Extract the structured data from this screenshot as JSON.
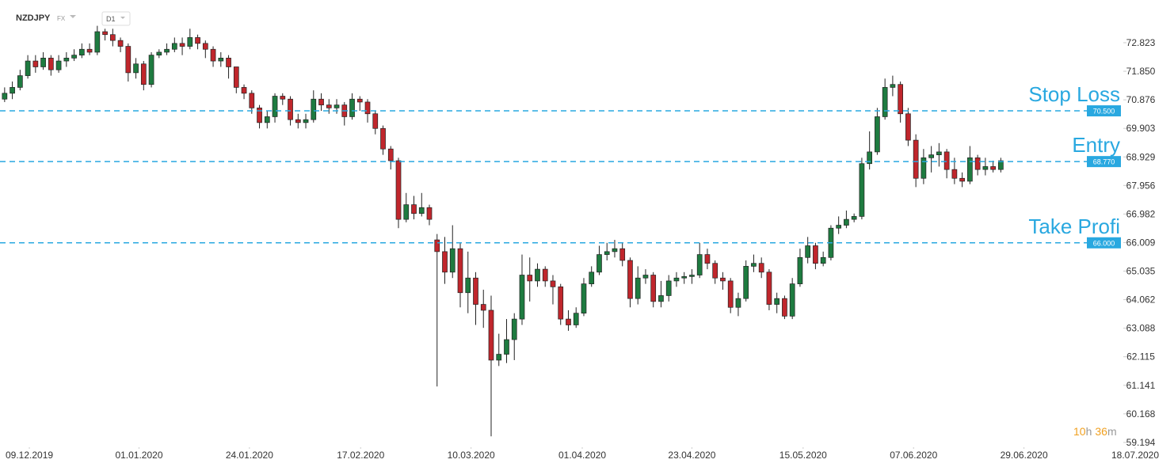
{
  "header": {
    "symbol": "NZDJPY",
    "market": "FX",
    "interval": "D1"
  },
  "countdown": {
    "hours": "10",
    "hours_unit": "h",
    "minutes": "36",
    "minutes_unit": "m"
  },
  "chart_data": {
    "type": "candlestick",
    "up_color": "#1e7b40",
    "down_color": "#c0262c",
    "candles": [
      [
        70.9,
        71.3,
        70.8,
        71.1
      ],
      [
        71.1,
        71.5,
        70.9,
        71.3
      ],
      [
        71.3,
        71.9,
        71.2,
        71.7
      ],
      [
        71.7,
        72.4,
        71.6,
        72.2
      ],
      [
        72.2,
        72.4,
        71.8,
        72.0
      ],
      [
        72.0,
        72.5,
        71.9,
        72.3
      ],
      [
        72.3,
        72.4,
        71.7,
        71.9
      ],
      [
        71.9,
        72.4,
        71.8,
        72.2
      ],
      [
        72.2,
        72.5,
        72.0,
        72.3
      ],
      [
        72.3,
        72.6,
        72.2,
        72.4
      ],
      [
        72.4,
        72.8,
        72.3,
        72.6
      ],
      [
        72.6,
        72.8,
        72.4,
        72.5
      ],
      [
        72.5,
        73.4,
        72.4,
        73.2
      ],
      [
        73.2,
        73.3,
        72.9,
        73.1
      ],
      [
        73.1,
        73.3,
        72.7,
        72.9
      ],
      [
        72.9,
        73.0,
        72.5,
        72.7
      ],
      [
        72.7,
        72.8,
        71.5,
        71.8
      ],
      [
        71.8,
        72.3,
        71.6,
        72.1
      ],
      [
        72.1,
        72.2,
        71.2,
        71.4
      ],
      [
        71.4,
        72.5,
        71.3,
        72.4
      ],
      [
        72.4,
        72.6,
        72.3,
        72.5
      ],
      [
        72.5,
        72.8,
        72.4,
        72.6
      ],
      [
        72.6,
        73.0,
        72.5,
        72.8
      ],
      [
        72.8,
        73.0,
        72.4,
        72.7
      ],
      [
        72.7,
        73.3,
        72.6,
        73.0
      ],
      [
        73.0,
        73.1,
        72.6,
        72.8
      ],
      [
        72.8,
        72.9,
        72.3,
        72.6
      ],
      [
        72.6,
        72.7,
        72.0,
        72.2
      ],
      [
        72.2,
        72.5,
        72.0,
        72.3
      ],
      [
        72.3,
        72.4,
        71.6,
        72.0
      ],
      [
        72.0,
        72.0,
        71.1,
        71.3
      ],
      [
        71.3,
        71.4,
        70.9,
        71.1
      ],
      [
        71.1,
        71.2,
        70.4,
        70.6
      ],
      [
        70.6,
        70.7,
        69.9,
        70.1
      ],
      [
        70.1,
        70.5,
        69.9,
        70.3
      ],
      [
        70.3,
        71.1,
        70.1,
        71.0
      ],
      [
        71.0,
        71.1,
        70.7,
        70.9
      ],
      [
        70.9,
        71.0,
        70.0,
        70.2
      ],
      [
        70.2,
        70.4,
        69.9,
        70.1
      ],
      [
        70.1,
        70.4,
        69.9,
        70.2
      ],
      [
        70.2,
        71.2,
        70.1,
        70.9
      ],
      [
        70.9,
        71.1,
        70.5,
        70.7
      ],
      [
        70.7,
        70.9,
        70.4,
        70.6
      ],
      [
        70.6,
        70.9,
        70.4,
        70.7
      ],
      [
        70.7,
        70.8,
        70.0,
        70.3
      ],
      [
        70.3,
        71.1,
        70.2,
        70.9
      ],
      [
        70.9,
        71.0,
        70.5,
        70.8
      ],
      [
        70.8,
        70.9,
        70.1,
        70.4
      ],
      [
        70.4,
        70.5,
        69.7,
        69.9
      ],
      [
        69.9,
        70.0,
        69.0,
        69.2
      ],
      [
        69.2,
        69.3,
        68.5,
        68.8
      ],
      [
        68.8,
        68.9,
        66.5,
        66.8
      ],
      [
        66.8,
        67.7,
        66.7,
        67.3
      ],
      [
        67.3,
        67.6,
        66.8,
        67.0
      ],
      [
        67.0,
        67.7,
        66.9,
        67.2
      ],
      [
        67.2,
        67.3,
        66.6,
        66.8
      ],
      [
        66.1,
        66.3,
        61.1,
        65.7
      ],
      [
        65.7,
        66.2,
        64.6,
        65.0
      ],
      [
        65.0,
        66.6,
        64.8,
        65.8
      ],
      [
        65.8,
        66.0,
        63.8,
        64.3
      ],
      [
        64.3,
        65.7,
        63.6,
        64.8
      ],
      [
        64.8,
        65.0,
        63.2,
        63.9
      ],
      [
        63.9,
        64.4,
        63.1,
        63.7
      ],
      [
        63.7,
        64.2,
        59.4,
        62.0
      ],
      [
        62.0,
        62.9,
        61.8,
        62.2
      ],
      [
        62.2,
        63.4,
        61.9,
        62.7
      ],
      [
        62.7,
        63.6,
        62.0,
        63.4
      ],
      [
        63.4,
        65.6,
        63.2,
        64.9
      ],
      [
        64.9,
        65.5,
        64.0,
        64.7
      ],
      [
        64.7,
        65.3,
        64.5,
        65.1
      ],
      [
        65.1,
        65.2,
        64.5,
        64.7
      ],
      [
        64.7,
        64.9,
        63.9,
        64.5
      ],
      [
        64.5,
        64.6,
        63.2,
        63.4
      ],
      [
        63.4,
        63.7,
        63.0,
        63.2
      ],
      [
        63.2,
        63.8,
        63.1,
        63.6
      ],
      [
        63.6,
        64.8,
        63.5,
        64.6
      ],
      [
        64.6,
        65.2,
        64.5,
        65.0
      ],
      [
        65.0,
        65.9,
        64.9,
        65.6
      ],
      [
        65.6,
        66.0,
        65.4,
        65.7
      ],
      [
        65.7,
        66.1,
        65.5,
        65.8
      ],
      [
        65.8,
        66.0,
        65.2,
        65.4
      ],
      [
        65.4,
        65.5,
        63.8,
        64.1
      ],
      [
        64.1,
        65.2,
        63.9,
        64.8
      ],
      [
        64.8,
        65.1,
        64.6,
        64.9
      ],
      [
        64.9,
        65.0,
        63.8,
        64.0
      ],
      [
        64.0,
        64.7,
        63.8,
        64.2
      ],
      [
        64.2,
        64.9,
        64.0,
        64.7
      ],
      [
        64.7,
        65.0,
        64.5,
        64.8
      ],
      [
        64.8,
        65.0,
        64.6,
        64.85
      ],
      [
        64.85,
        65.1,
        64.6,
        64.9
      ],
      [
        64.9,
        66.0,
        64.8,
        65.6
      ],
      [
        65.6,
        65.8,
        65.1,
        65.3
      ],
      [
        65.3,
        65.4,
        64.6,
        64.8
      ],
      [
        64.8,
        65.0,
        64.4,
        64.7
      ],
      [
        64.7,
        64.8,
        63.6,
        63.8
      ],
      [
        63.8,
        64.3,
        63.5,
        64.1
      ],
      [
        64.1,
        65.4,
        64.0,
        65.2
      ],
      [
        65.2,
        65.6,
        65.0,
        65.3
      ],
      [
        65.3,
        65.5,
        64.8,
        65.0
      ],
      [
        65.0,
        65.1,
        63.7,
        63.9
      ],
      [
        63.9,
        64.3,
        63.6,
        64.1
      ],
      [
        64.1,
        64.2,
        63.4,
        63.5
      ],
      [
        63.5,
        64.8,
        63.4,
        64.6
      ],
      [
        64.6,
        65.8,
        64.5,
        65.5
      ],
      [
        65.5,
        66.2,
        65.3,
        65.9
      ],
      [
        65.9,
        66.0,
        65.1,
        65.3
      ],
      [
        65.3,
        65.7,
        65.2,
        65.5
      ],
      [
        65.5,
        66.6,
        65.4,
        66.5
      ],
      [
        66.5,
        66.9,
        66.3,
        66.6
      ],
      [
        66.6,
        67.1,
        66.5,
        66.8
      ],
      [
        66.8,
        67.0,
        66.7,
        66.9
      ],
      [
        66.9,
        68.9,
        66.8,
        68.7
      ],
      [
        68.7,
        69.8,
        68.5,
        69.1
      ],
      [
        69.1,
        70.6,
        69.0,
        70.3
      ],
      [
        70.3,
        71.6,
        70.2,
        71.3
      ],
      [
        71.3,
        71.7,
        71.0,
        71.4
      ],
      [
        71.4,
        71.5,
        70.1,
        70.4
      ],
      [
        70.4,
        70.6,
        69.3,
        69.5
      ],
      [
        69.5,
        69.7,
        67.9,
        68.2
      ],
      [
        68.2,
        69.2,
        68.0,
        68.9
      ],
      [
        68.9,
        69.3,
        68.4,
        69.0
      ],
      [
        69.0,
        69.4,
        68.6,
        69.1
      ],
      [
        69.1,
        69.2,
        68.2,
        68.5
      ],
      [
        68.5,
        68.9,
        68.0,
        68.2
      ],
      [
        68.2,
        68.4,
        67.9,
        68.1
      ],
      [
        68.1,
        69.3,
        68.0,
        68.9
      ],
      [
        68.9,
        69.0,
        68.3,
        68.5
      ],
      [
        68.5,
        68.9,
        68.3,
        68.6
      ],
      [
        68.6,
        68.8,
        68.4,
        68.5
      ],
      [
        68.5,
        68.9,
        68.4,
        68.8
      ]
    ],
    "levels": [
      {
        "name": "Stop Loss",
        "value": 70.5,
        "value_label": "70.500"
      },
      {
        "name": "Entry",
        "value": 68.77,
        "value_label": "68.770"
      },
      {
        "name": "Take Profi",
        "value": 66.0,
        "value_label": "66.000"
      }
    ],
    "level_color": "#29a8e0",
    "ylim": [
      59.03,
      74.28
    ],
    "yticks": [
      72.823,
      {
        "value": 71.85,
        "label": "71.850"
      },
      70.876,
      69.903,
      68.929,
      67.956,
      66.982,
      66.009,
      65.035,
      64.062,
      63.088,
      62.115,
      61.141,
      60.168,
      59.194
    ],
    "xlim": [
      -0.6,
      146.4
    ],
    "xticks": [
      {
        "value": 3.2,
        "label": "09.12.2019"
      },
      {
        "value": 17.4,
        "label": "01.01.2020"
      },
      {
        "value": 31.7,
        "label": "24.01.2020"
      },
      {
        "value": 46.1,
        "label": "17.02.2020"
      },
      {
        "value": 60.4,
        "label": "10.03.2020"
      },
      {
        "value": 74.8,
        "label": "01.04.2020"
      },
      {
        "value": 89.0,
        "label": "23.04.2020"
      },
      {
        "value": 103.4,
        "label": "15.05.2020"
      },
      {
        "value": 117.7,
        "label": "07.06.2020"
      },
      {
        "value": 132.0,
        "label": "29.06.2020"
      },
      {
        "value": 146.4,
        "label": "18.07.2020"
      }
    ],
    "grid": false
  }
}
